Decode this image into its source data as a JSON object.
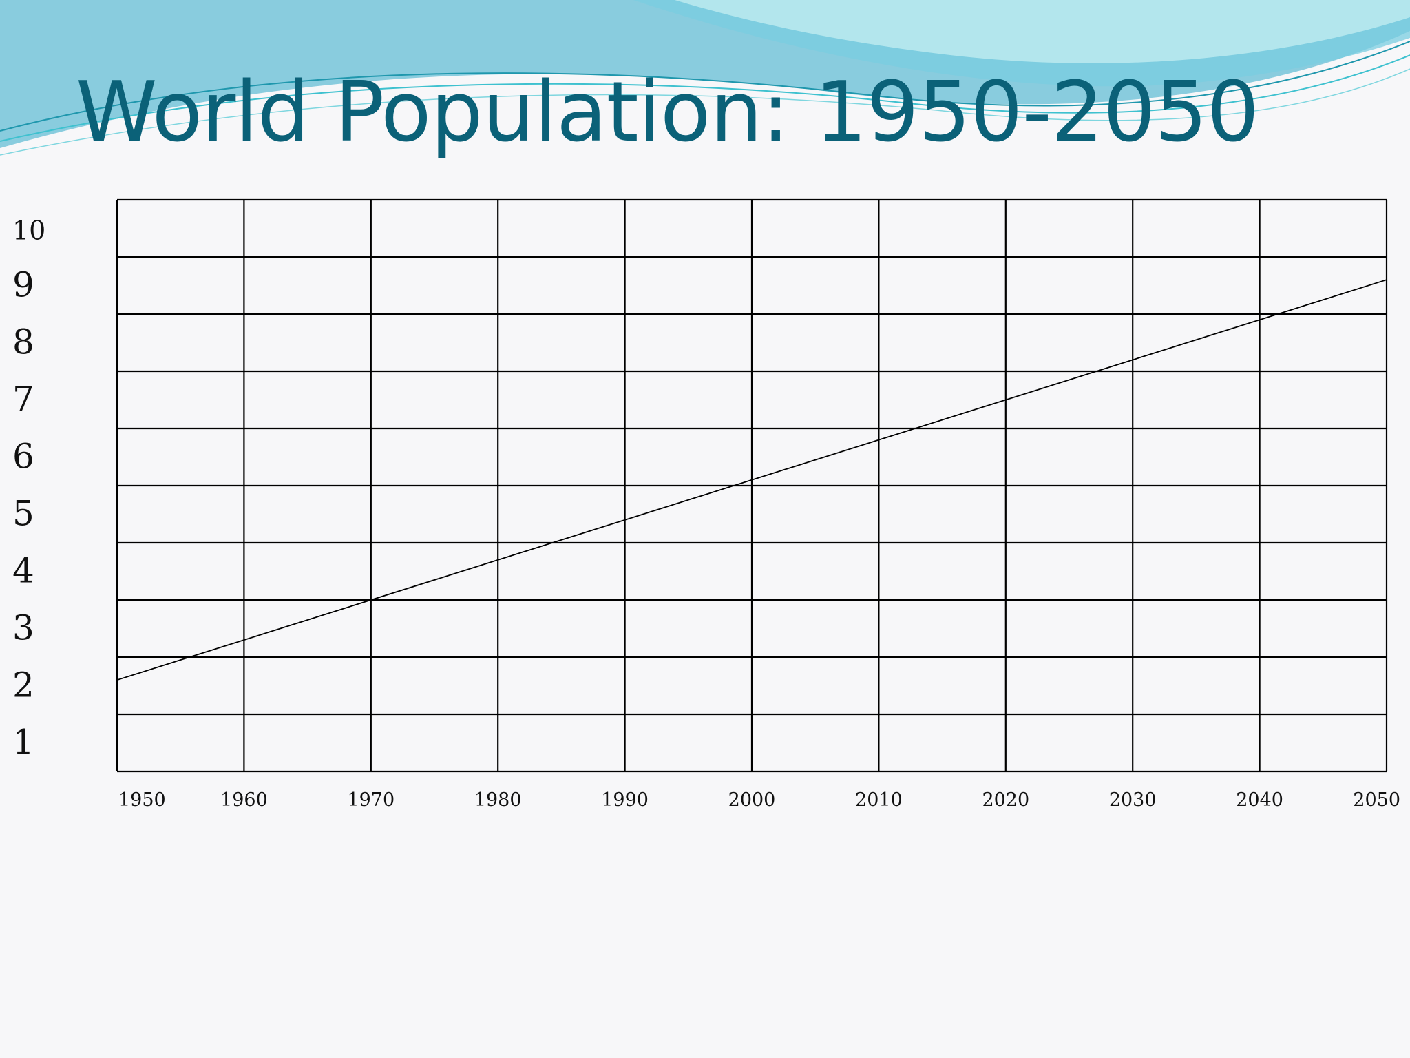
{
  "slide": {
    "title": "World Population: 1950-2050"
  },
  "colors": {
    "title": "#0b6178",
    "banner_light": "#b9e9ee",
    "banner_mid": "#79cde0",
    "banner_dark": "#2fa9c8",
    "grid_line": "#000000",
    "data_line": "#000000",
    "tick_label": "#111111"
  },
  "chart_data": {
    "type": "line",
    "title": "World Population: 1950-2050",
    "xlabel": "",
    "ylabel": "",
    "xlim": [
      1950,
      2050
    ],
    "ylim": [
      0,
      10
    ],
    "grid": true,
    "x_ticks": [
      "1950",
      "1960",
      "1970",
      "1980",
      "1990",
      "2000",
      "2010",
      "2020",
      "2030",
      "2040",
      "2050"
    ],
    "y_ticks": [
      "1",
      "2",
      "3",
      "4",
      "5",
      "6",
      "7",
      "8",
      "9",
      "10"
    ],
    "series": [
      {
        "x": [
          1950,
          2050
        ],
        "y": [
          1.6,
          8.6
        ]
      }
    ]
  }
}
